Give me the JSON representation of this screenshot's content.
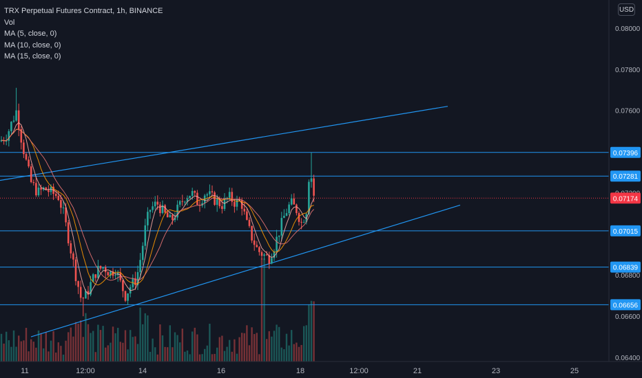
{
  "header": {
    "symbol_line": "TRX Perpetual Futures Contract, 1h, BINANCE",
    "indicators": [
      "Vol",
      "MA (5, close, 0)",
      "MA (10, close, 0)",
      "MA (15, close, 0)"
    ]
  },
  "price_axis": {
    "currency": "USD",
    "ticks": [
      "0.08000",
      "0.07800",
      "0.07600",
      "0.07200",
      "0.06800",
      "0.06600",
      "0.06400"
    ],
    "tick_values": [
      0.08,
      0.078,
      0.076,
      0.072,
      0.068,
      0.066,
      0.064
    ],
    "range": [
      0.0638,
      0.0812
    ]
  },
  "time_axis": {
    "labels": [
      "11",
      "12:00",
      "14",
      "16",
      "18",
      "12:00",
      "21",
      "23",
      "25"
    ]
  },
  "colors": {
    "background": "#131722",
    "up": "#26a69a",
    "down": "#ef5350",
    "level_line": "#2196f3",
    "ma_fast": "#f6a5a0",
    "ma_slow": "#ff9800",
    "current_price_label": "#f23645"
  },
  "chart_data": {
    "type": "candlestick",
    "title": "TRX Perpetual Futures Contract, 1h, BINANCE",
    "ylim": [
      0.0638,
      0.0812
    ],
    "levels": [
      {
        "label": "0.07396",
        "value": 0.07396
      },
      {
        "label": "0.07281",
        "value": 0.07281
      },
      {
        "label": "0.07015",
        "value": 0.07015
      },
      {
        "label": "0.06839",
        "value": 0.06839
      },
      {
        "label": "0.06656",
        "value": 0.06656
      }
    ],
    "current_price": {
      "label": "0.07174",
      "value": 0.07174
    },
    "trendlines": [
      {
        "name": "upper",
        "from": [
          0,
          0.0726
        ],
        "to": [
          650,
          0.0762
        ]
      },
      {
        "name": "lower",
        "from": [
          45,
          0.065
        ],
        "to": [
          668,
          0.0714
        ]
      }
    ],
    "price_path": [
      [
        0,
        0.0745
      ],
      [
        10,
        0.0748
      ],
      [
        18,
        0.0755
      ],
      [
        24,
        0.076
      ],
      [
        30,
        0.0748
      ],
      [
        36,
        0.0738
      ],
      [
        45,
        0.0725
      ],
      [
        55,
        0.072
      ],
      [
        65,
        0.0722
      ],
      [
        75,
        0.072
      ],
      [
        85,
        0.0718
      ],
      [
        92,
        0.071
      ],
      [
        100,
        0.0697
      ],
      [
        110,
        0.068
      ],
      [
        118,
        0.0668
      ],
      [
        125,
        0.067
      ],
      [
        132,
        0.0676
      ],
      [
        140,
        0.0682
      ],
      [
        150,
        0.0684
      ],
      [
        160,
        0.0681
      ],
      [
        168,
        0.0683
      ],
      [
        175,
        0.0676
      ],
      [
        182,
        0.067
      ],
      [
        190,
        0.0675
      ],
      [
        198,
        0.0678
      ],
      [
        205,
        0.069
      ],
      [
        212,
        0.0705
      ],
      [
        218,
        0.0712
      ],
      [
        228,
        0.0715
      ],
      [
        238,
        0.071
      ],
      [
        248,
        0.0706
      ],
      [
        258,
        0.0712
      ],
      [
        268,
        0.0718
      ],
      [
        278,
        0.072
      ],
      [
        288,
        0.0715
      ],
      [
        298,
        0.072
      ],
      [
        310,
        0.0717
      ],
      [
        322,
        0.0714
      ],
      [
        332,
        0.0718
      ],
      [
        342,
        0.0715
      ],
      [
        350,
        0.0716
      ],
      [
        358,
        0.0705
      ],
      [
        366,
        0.0698
      ],
      [
        374,
        0.0692
      ],
      [
        382,
        0.069
      ],
      [
        390,
        0.0688
      ],
      [
        398,
        0.0694
      ],
      [
        406,
        0.0702
      ],
      [
        414,
        0.071
      ],
      [
        422,
        0.0715
      ],
      [
        430,
        0.0712
      ],
      [
        438,
        0.0705
      ],
      [
        445,
        0.0712
      ],
      [
        450,
        0.0735
      ],
      [
        454,
        0.072
      ],
      [
        458,
        0.0717
      ]
    ]
  }
}
